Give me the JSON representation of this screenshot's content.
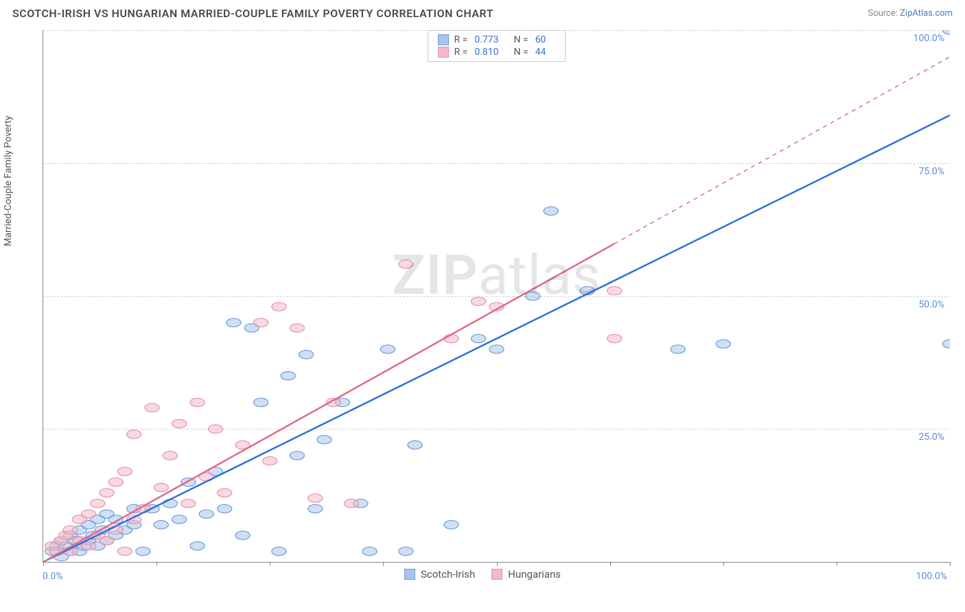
{
  "title": "SCOTCH-IRISH VS HUNGARIAN MARRIED-COUPLE FAMILY POVERTY CORRELATION CHART",
  "source_label": "Source: ",
  "source_name": "ZipAtlas.com",
  "y_axis_label": "Married-Couple Family Poverty",
  "watermark_a": "ZIP",
  "watermark_b": "atlas",
  "chart": {
    "type": "scatter",
    "xlim": [
      0,
      100
    ],
    "ylim": [
      0,
      100
    ],
    "x_ticks": [
      0,
      12.5,
      25,
      37.5,
      50,
      62.5,
      75,
      87.5,
      100
    ],
    "y_gridlines": [
      25,
      50,
      75,
      100
    ],
    "x_tick_labels": {
      "0": "0.0%",
      "100": "100.0%"
    },
    "y_tick_labels": {
      "25": "25.0%",
      "50": "50.0%",
      "75": "75.0%",
      "100": "100.0%"
    },
    "background_color": "#ffffff",
    "grid_color": "#d0d0d0",
    "axis_color": "#888888",
    "tick_label_color": "#5b8dd6",
    "marker_radius": 8,
    "marker_opacity": 0.55,
    "series": [
      {
        "id": "scotch_irish",
        "label": "Scotch-Irish",
        "fill": "#a7c5ec",
        "stroke": "#6a9bd8",
        "line_color": "#2f6fe0",
        "R": "0.773",
        "N": "60",
        "trend": {
          "x1": 0,
          "y1": 0,
          "x2": 100,
          "y2": 84,
          "solid_until": 100
        },
        "points": [
          [
            1,
            2
          ],
          [
            1.5,
            3
          ],
          [
            2,
            1
          ],
          [
            2,
            4
          ],
          [
            2.5,
            3
          ],
          [
            3,
            2
          ],
          [
            3,
            5
          ],
          [
            3.5,
            4
          ],
          [
            4,
            2
          ],
          [
            4,
            6
          ],
          [
            4.5,
            3
          ],
          [
            5,
            4
          ],
          [
            5,
            7
          ],
          [
            5.5,
            5
          ],
          [
            6,
            3
          ],
          [
            6,
            8
          ],
          [
            6.5,
            6
          ],
          [
            7,
            4
          ],
          [
            7,
            9
          ],
          [
            8,
            5
          ],
          [
            8,
            8
          ],
          [
            9,
            6
          ],
          [
            10,
            7
          ],
          [
            10,
            10
          ],
          [
            11,
            2
          ],
          [
            12,
            10
          ],
          [
            13,
            7
          ],
          [
            14,
            11
          ],
          [
            15,
            8
          ],
          [
            16,
            15
          ],
          [
            17,
            3
          ],
          [
            18,
            9
          ],
          [
            19,
            17
          ],
          [
            20,
            10
          ],
          [
            21,
            45
          ],
          [
            22,
            5
          ],
          [
            23,
            44
          ],
          [
            24,
            30
          ],
          [
            26,
            2
          ],
          [
            27,
            35
          ],
          [
            28,
            20
          ],
          [
            29,
            39
          ],
          [
            30,
            10
          ],
          [
            31,
            23
          ],
          [
            33,
            30
          ],
          [
            35,
            11
          ],
          [
            36,
            2
          ],
          [
            38,
            40
          ],
          [
            40,
            2
          ],
          [
            41,
            22
          ],
          [
            45,
            7
          ],
          [
            48,
            42
          ],
          [
            50,
            40
          ],
          [
            54,
            50
          ],
          [
            56,
            66
          ],
          [
            60,
            51
          ],
          [
            70,
            40
          ],
          [
            75,
            41
          ],
          [
            100,
            100
          ],
          [
            100,
            41
          ]
        ]
      },
      {
        "id": "hungarians",
        "label": "Hungarians",
        "fill": "#f3b9c6",
        "stroke": "#e690a6",
        "line_color": "#e06a8a",
        "R": "0.810",
        "N": "44",
        "trend": {
          "x1": 0,
          "y1": 0,
          "x2": 100,
          "y2": 95,
          "solid_until": 63
        },
        "points": [
          [
            1,
            3
          ],
          [
            1.5,
            2
          ],
          [
            2,
            4
          ],
          [
            2.5,
            5
          ],
          [
            3,
            2
          ],
          [
            3,
            6
          ],
          [
            4,
            4
          ],
          [
            4,
            8
          ],
          [
            5,
            3
          ],
          [
            5,
            9
          ],
          [
            6,
            5
          ],
          [
            6,
            11
          ],
          [
            7,
            4
          ],
          [
            7,
            13
          ],
          [
            8,
            6
          ],
          [
            8,
            15
          ],
          [
            9,
            2
          ],
          [
            9,
            17
          ],
          [
            10,
            8
          ],
          [
            10,
            24
          ],
          [
            11,
            10
          ],
          [
            12,
            29
          ],
          [
            13,
            14
          ],
          [
            14,
            20
          ],
          [
            15,
            26
          ],
          [
            16,
            11
          ],
          [
            17,
            30
          ],
          [
            18,
            16
          ],
          [
            19,
            25
          ],
          [
            20,
            13
          ],
          [
            22,
            22
          ],
          [
            24,
            45
          ],
          [
            25,
            19
          ],
          [
            26,
            48
          ],
          [
            28,
            44
          ],
          [
            30,
            12
          ],
          [
            32,
            30
          ],
          [
            34,
            11
          ],
          [
            40,
            56
          ],
          [
            45,
            42
          ],
          [
            48,
            49
          ],
          [
            50,
            48
          ],
          [
            63,
            51
          ],
          [
            63,
            42
          ]
        ]
      }
    ]
  },
  "legend_top": {
    "r_label": "R =",
    "n_label": "N ="
  }
}
